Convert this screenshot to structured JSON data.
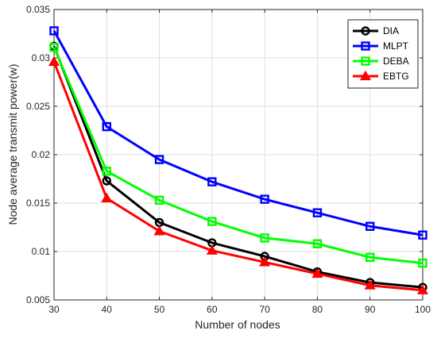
{
  "chart_data": {
    "type": "line",
    "title": "",
    "xlabel": "Number of nodes",
    "ylabel": "Node average transmit power(w)",
    "x": [
      30,
      40,
      50,
      60,
      70,
      80,
      90,
      100
    ],
    "xlim": [
      30,
      100
    ],
    "ylim": [
      0.005,
      0.035
    ],
    "xticks": [
      "30",
      "40",
      "50",
      "60",
      "70",
      "80",
      "90",
      "100"
    ],
    "yticks": [
      "0.005",
      "0.01",
      "0.015",
      "0.02",
      "0.025",
      "0.03",
      "0.035"
    ],
    "grid": true,
    "legend_position": "top-right",
    "series": [
      {
        "name": "DIA",
        "color": "#000000",
        "marker": "circle",
        "values": [
          0.0312,
          0.0173,
          0.013,
          0.0109,
          0.0095,
          0.0079,
          0.0068,
          0.0063
        ]
      },
      {
        "name": "MLPT",
        "color": "#0000ff",
        "marker": "square",
        "values": [
          0.0328,
          0.0229,
          0.0195,
          0.0172,
          0.0154,
          0.014,
          0.0126,
          0.0117
        ]
      },
      {
        "name": "DEBA",
        "color": "#00ff00",
        "marker": "square",
        "values": [
          0.0311,
          0.0183,
          0.0153,
          0.0131,
          0.0114,
          0.0108,
          0.0094,
          0.0088
        ]
      },
      {
        "name": "EBTG",
        "color": "#ff0000",
        "marker": "triangle",
        "values": [
          0.0296,
          0.0155,
          0.0121,
          0.0101,
          0.0089,
          0.0077,
          0.0065,
          0.006
        ]
      }
    ]
  }
}
